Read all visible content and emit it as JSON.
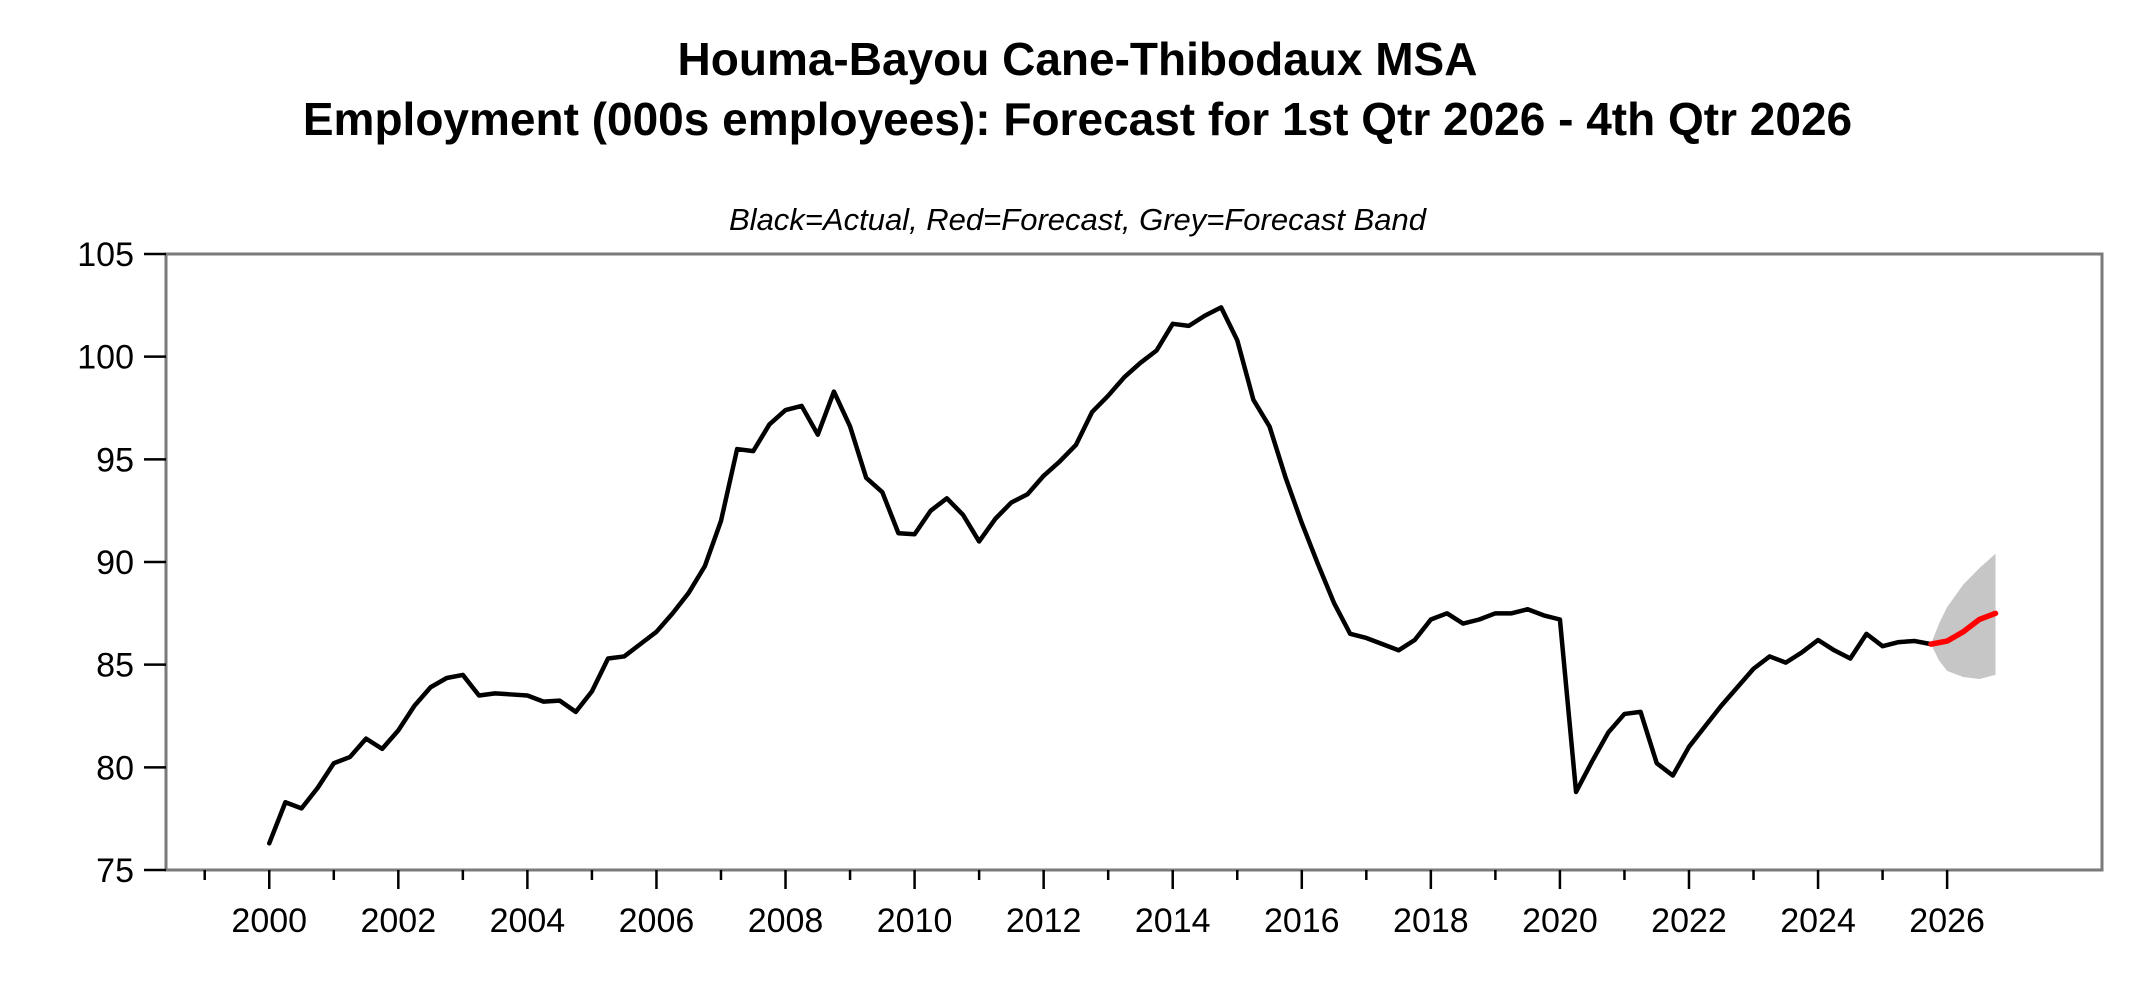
{
  "header": {
    "title_line1": "Houma-Bayou Cane-Thibodaux MSA",
    "title_line2": "Employment (000s employees): Forecast for 1st Qtr 2026 - 4th Qtr 2026",
    "subtitle": "Black=Actual, Red=Forecast, Grey=Forecast Band"
  },
  "chart_data": {
    "type": "line",
    "title": "Houma-Bayou Cane-Thibodaux MSA",
    "subtitle": "Employment (000s employees): Forecast for 1st Qtr 2026 - 4th Qtr 2026",
    "legend_note": "Black=Actual, Red=Forecast, Grey=Forecast Band",
    "xlabel": "",
    "ylabel": "",
    "xlim": [
      1998.4,
      2028.4
    ],
    "ylim": [
      75,
      105
    ],
    "y_ticks": [
      75,
      80,
      85,
      90,
      95,
      100,
      105
    ],
    "x_major_ticks": [
      2000,
      2002,
      2004,
      2006,
      2008,
      2010,
      2012,
      2014,
      2016,
      2018,
      2020,
      2022,
      2024,
      2026
    ],
    "x_minor_ticks": [
      1999,
      2001,
      2003,
      2005,
      2007,
      2009,
      2011,
      2013,
      2015,
      2017,
      2019,
      2021,
      2023,
      2025
    ],
    "grid": false,
    "frequency": "quarterly",
    "colors": {
      "actual": "#000000",
      "forecast": "#ff0000",
      "band": "#c6c6c6",
      "frame": "#7a7a7a",
      "ticks": "#000000"
    },
    "series": [
      {
        "name": "Actual",
        "color": "#000000",
        "x_start": 2000.0,
        "x_step": 0.25,
        "values": [
          76.3,
          78.3,
          78.0,
          79.0,
          80.2,
          80.5,
          81.4,
          80.9,
          81.8,
          83.0,
          83.9,
          84.35,
          84.5,
          83.5,
          83.6,
          83.55,
          83.5,
          83.2,
          83.25,
          82.7,
          83.7,
          85.3,
          85.4,
          86.0,
          86.6,
          87.5,
          88.5,
          89.8,
          92.0,
          95.5,
          95.4,
          96.7,
          97.4,
          97.6,
          96.2,
          98.3,
          96.6,
          94.1,
          93.4,
          91.4,
          91.35,
          92.5,
          93.1,
          92.3,
          91.0,
          92.1,
          92.9,
          93.3,
          94.2,
          94.9,
          95.7,
          97.3,
          98.1,
          99.0,
          99.7,
          100.3,
          101.6,
          101.5,
          102.0,
          102.4,
          100.8,
          97.9,
          96.6,
          94.1,
          91.9,
          89.9,
          88.0,
          86.5,
          86.3,
          86.0,
          85.7,
          86.2,
          87.2,
          87.5,
          87.0,
          87.2,
          87.5,
          87.5,
          87.7,
          87.4,
          87.2,
          78.8,
          80.3,
          81.7,
          82.6,
          82.7,
          80.2,
          79.6,
          81.0,
          82.0,
          83.0,
          83.9,
          84.8,
          85.4,
          85.1,
          85.6,
          86.2,
          85.7,
          85.3,
          86.5,
          85.9,
          86.1,
          86.15,
          86.0
        ]
      },
      {
        "name": "Forecast",
        "color": "#ff0000",
        "x": [
          2025.75,
          2026.0,
          2026.25,
          2026.5,
          2026.75
        ],
        "values": [
          86.0,
          86.15,
          86.6,
          87.2,
          87.5
        ]
      },
      {
        "name": "Forecast Band",
        "color": "#c6c6c6",
        "x": [
          2025.75,
          2025.875,
          2026.0,
          2026.25,
          2026.5,
          2026.75
        ],
        "upper": [
          86.0,
          87.0,
          87.8,
          88.9,
          89.7,
          90.4
        ],
        "lower": [
          86.0,
          85.2,
          84.7,
          84.4,
          84.3,
          84.5
        ]
      }
    ]
  }
}
